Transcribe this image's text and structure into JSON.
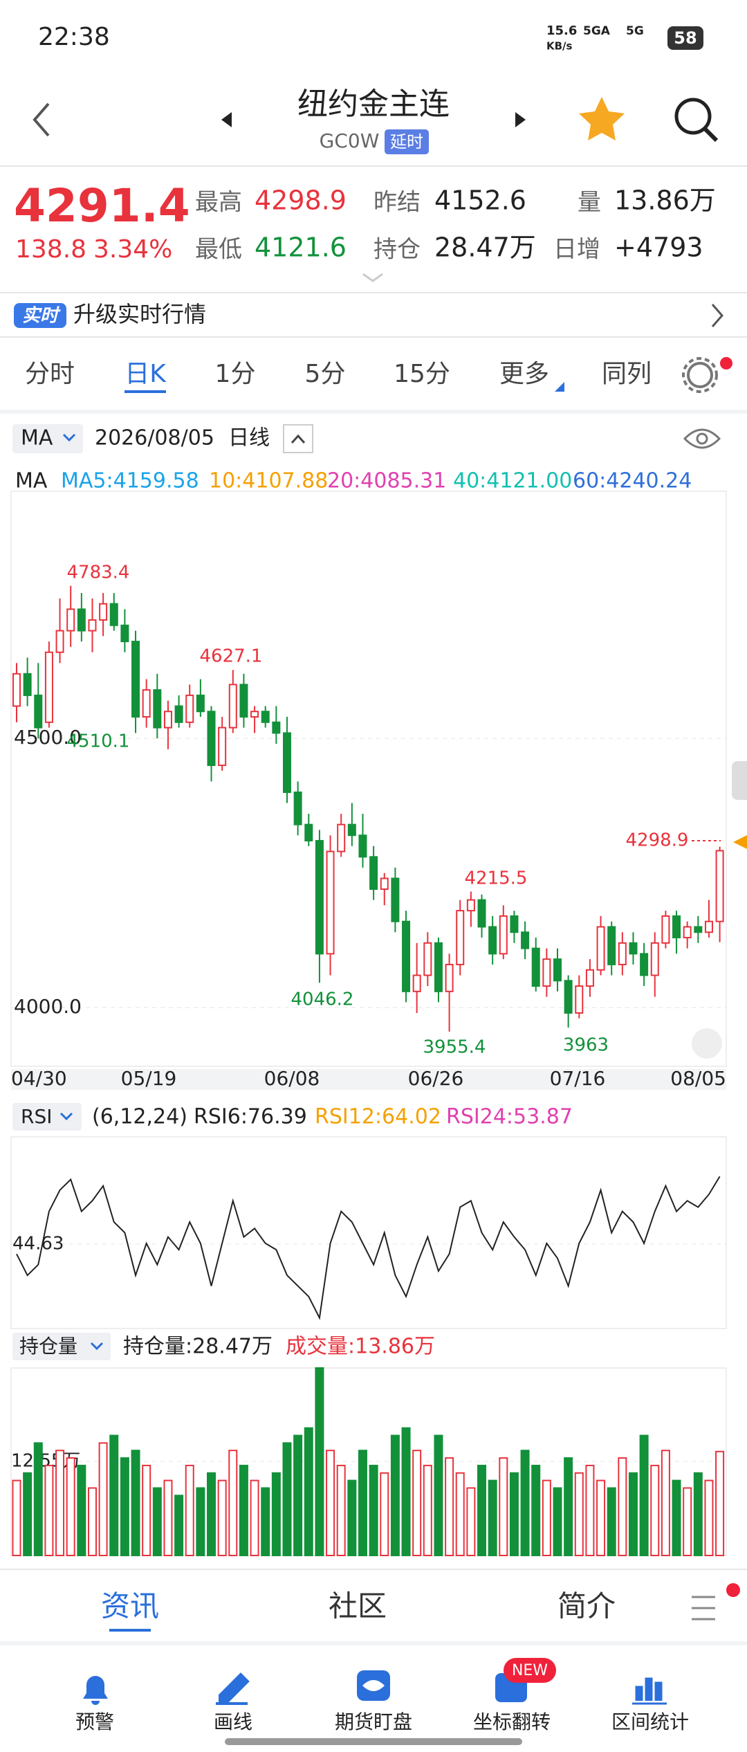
{
  "status_bar": {
    "time": "22:38",
    "net_speed": "15.6",
    "net_unit": "KB/s",
    "signal1": "5GA",
    "signal2": "5G",
    "battery": "58"
  },
  "header": {
    "title": "纽约金主连",
    "code": "GC0W",
    "badge": "延时"
  },
  "quote": {
    "price": "4291.4",
    "change": "138.8",
    "change_pct": "3.34%",
    "stats": [
      {
        "label": "最高",
        "value": "4298.9"
      },
      {
        "label": "最低",
        "value": "4121.6"
      },
      {
        "label": "昨结",
        "value": "4152.6"
      },
      {
        "label": "持仓",
        "value": "28.47万"
      },
      {
        "label": "量",
        "value": "13.86万"
      },
      {
        "label": "日增",
        "value": "+4793"
      }
    ]
  },
  "banner": {
    "badge": "实时",
    "text": "升级实时行情"
  },
  "period_tabs": [
    "分时",
    "日K",
    "1分",
    "5分",
    "15分",
    "更多",
    "同列"
  ],
  "kline": {
    "indicator": "MA",
    "date": "2026/08/05",
    "period": "日线",
    "ma_label": "MA",
    "ma": [
      {
        "text": "MA5:4159.58",
        "color": "#1aa3e8"
      },
      {
        "text": "10:4107.88",
        "color": "#f5a000"
      },
      {
        "text": "20:4085.31",
        "color": "#e040b0"
      },
      {
        "text": "40:4121.00",
        "color": "#12c0b0"
      },
      {
        "text": "60:4240.24",
        "color": "#2f6fd8"
      }
    ],
    "dates": [
      "04/30",
      "05/19",
      "06/08",
      "06/26",
      "07/16",
      "08/05"
    ],
    "ylim": [
      3891,
      4959
    ],
    "yticks": [
      {
        "value": 4500,
        "label": "4500.0"
      },
      {
        "value": 4000,
        "label": "4000.0"
      }
    ],
    "annotations": [
      4783.4,
      4627.1,
      4510.1,
      4046.2,
      4215.5,
      3955.4,
      3963.0,
      4298.9
    ],
    "up_color": "#e8323c",
    "down_color": "#12913a",
    "candles": [
      [
        4560,
        4640,
        4530,
        4620
      ],
      [
        4620,
        4650,
        4560,
        4580
      ],
      [
        4580,
        4640,
        4500,
        4520
      ],
      [
        4530,
        4680,
        4520,
        4660
      ],
      [
        4660,
        4760,
        4640,
        4700
      ],
      [
        4700,
        4783.4,
        4670,
        4740
      ],
      [
        4740,
        4770,
        4680,
        4700
      ],
      [
        4700,
        4760,
        4660,
        4720
      ],
      [
        4720,
        4770,
        4690,
        4750
      ],
      [
        4750,
        4770,
        4700,
        4710
      ],
      [
        4710,
        4740,
        4660,
        4680
      ],
      [
        4680,
        4700,
        4510,
        4540
      ],
      [
        4540,
        4610,
        4520,
        4590
      ],
      [
        4590,
        4620,
        4500,
        4520
      ],
      [
        4520,
        4570,
        4480,
        4550
      ],
      [
        4560,
        4580,
        4520,
        4530
      ],
      [
        4530,
        4600,
        4520,
        4580
      ],
      [
        4580,
        4610,
        4540,
        4550
      ],
      [
        4550,
        4560,
        4420,
        4450
      ],
      [
        4450,
        4540,
        4440,
        4520
      ],
      [
        4520,
        4627.1,
        4510,
        4600
      ],
      [
        4600,
        4620,
        4520,
        4540
      ],
      [
        4540,
        4560,
        4510,
        4550
      ],
      [
        4550,
        4560,
        4520,
        4530
      ],
      [
        4530,
        4560,
        4490,
        4510
      ],
      [
        4510,
        4540,
        4380,
        4400
      ],
      [
        4400,
        4420,
        4320,
        4340
      ],
      [
        4340,
        4360,
        4300,
        4310
      ],
      [
        4310,
        4330,
        4046.2,
        4100
      ],
      [
        4100,
        4320,
        4060,
        4290
      ],
      [
        4290,
        4360,
        4280,
        4340
      ],
      [
        4340,
        4380,
        4300,
        4320
      ],
      [
        4320,
        4360,
        4260,
        4280
      ],
      [
        4280,
        4300,
        4200,
        4220
      ],
      [
        4220,
        4250,
        4190,
        4240
      ],
      [
        4240,
        4260,
        4140,
        4160
      ],
      [
        4160,
        4180,
        4010,
        4030
      ],
      [
        4030,
        4120,
        3990,
        4060
      ],
      [
        4060,
        4140,
        4040,
        4120
      ],
      [
        4120,
        4130,
        4010,
        4030
      ],
      [
        4030,
        4100,
        3955.4,
        4080
      ],
      [
        4080,
        4200,
        4060,
        4180
      ],
      [
        4180,
        4215.5,
        4150,
        4200
      ],
      [
        4200,
        4210,
        4130,
        4150
      ],
      [
        4150,
        4170,
        4080,
        4100
      ],
      [
        4100,
        4190,
        4090,
        4170
      ],
      [
        4170,
        4180,
        4120,
        4140
      ],
      [
        4140,
        4160,
        4090,
        4110
      ],
      [
        4110,
        4130,
        4030,
        4040
      ],
      [
        4040,
        4110,
        4020,
        4090
      ],
      [
        4090,
        4110,
        4030,
        4050
      ],
      [
        4050,
        4060,
        3963.0,
        3990
      ],
      [
        3990,
        4060,
        3980,
        4040
      ],
      [
        4040,
        4090,
        4020,
        4070
      ],
      [
        4070,
        4170,
        4060,
        4150
      ],
      [
        4150,
        4160,
        4060,
        4080
      ],
      [
        4080,
        4140,
        4060,
        4120
      ],
      [
        4120,
        4140,
        4080,
        4100
      ],
      [
        4100,
        4120,
        4040,
        4060
      ],
      [
        4060,
        4140,
        4020,
        4120
      ],
      [
        4120,
        4180,
        4110,
        4170
      ],
      [
        4170,
        4180,
        4100,
        4130
      ],
      [
        4130,
        4160,
        4110,
        4150
      ],
      [
        4150,
        4170,
        4120,
        4140
      ],
      [
        4140,
        4200,
        4130,
        4160
      ],
      [
        4160,
        4298.9,
        4121.6,
        4291.4
      ]
    ]
  },
  "rsi": {
    "label": "RSI",
    "params": "(6,12,24)",
    "legend": [
      {
        "text": "RSI6:76.39",
        "color": "#222"
      },
      {
        "text": "RSI12:64.02",
        "color": "#f5a000"
      },
      {
        "text": "RSI24:53.87",
        "color": "#e040b0"
      }
    ],
    "ylim": [
      5,
      95
    ],
    "yticks": [
      44.63
    ],
    "series": [
      {
        "name": "RSI6",
        "color": "#222",
        "values": [
          40,
          30,
          35,
          60,
          70,
          75,
          60,
          65,
          72,
          55,
          50,
          30,
          45,
          35,
          48,
          42,
          55,
          45,
          25,
          45,
          65,
          48,
          52,
          45,
          42,
          30,
          25,
          20,
          10,
          45,
          60,
          55,
          45,
          35,
          50,
          30,
          20,
          35,
          48,
          32,
          40,
          62,
          65,
          50,
          42,
          55,
          48,
          42,
          30,
          45,
          38,
          25,
          45,
          55,
          70,
          50,
          60,
          55,
          45,
          60,
          72,
          60,
          65,
          62,
          68,
          76.39
        ]
      }
    ]
  },
  "volume": {
    "label": "持仓量",
    "oi_text": "持仓量:28.47万",
    "vol_text": "成交量:13.86万",
    "ylim": [
      0,
      25
    ],
    "yticks": [
      {
        "value": 12.55,
        "label": "12.55万"
      }
    ],
    "values": [
      10,
      11,
      15,
      12,
      14,
      13,
      12,
      9,
      15,
      16,
      13,
      14,
      12,
      9,
      10,
      8,
      12,
      9,
      11,
      10,
      14,
      12,
      10,
      9,
      11,
      15,
      16,
      17,
      25,
      14,
      12,
      10,
      14,
      12,
      11,
      16,
      17,
      14,
      12,
      16,
      13,
      11,
      9,
      12,
      10,
      13,
      11,
      14,
      12,
      10,
      9,
      13,
      11,
      12,
      10,
      9,
      13,
      11,
      16,
      12,
      14,
      10,
      9,
      11,
      10,
      13.86
    ]
  },
  "bottom_tabs": [
    "资讯",
    "社区",
    "简介"
  ],
  "nav": [
    "预警",
    "画线",
    "期货盯盘",
    "坐标翻转",
    "区间统计"
  ],
  "nav_badge": "NEW"
}
